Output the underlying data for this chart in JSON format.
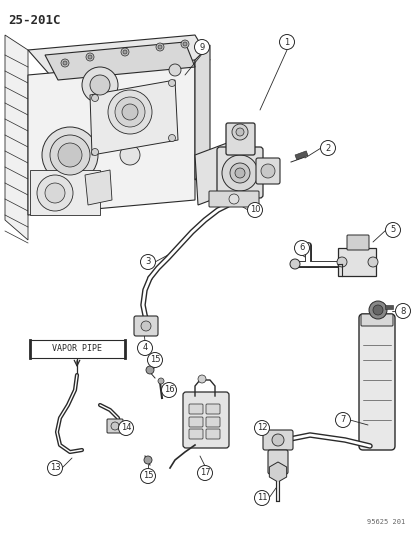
{
  "title": "25-201C",
  "watermark": "95625 201",
  "background_color": "#ffffff",
  "line_color": "#2a2a2a",
  "vapor_pipe_label": "VAPOR PIPE",
  "fig_width": 4.14,
  "fig_height": 5.33,
  "dpi": 100
}
